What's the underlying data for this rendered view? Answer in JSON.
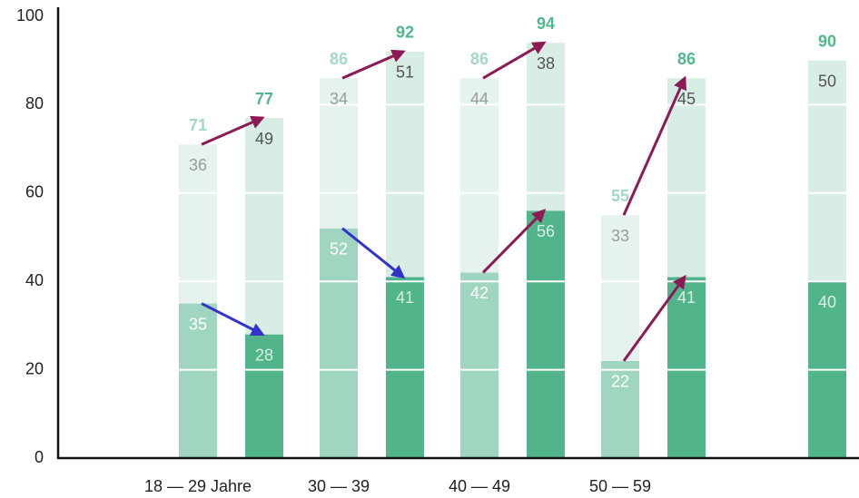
{
  "chart_data": {
    "type": "bar",
    "categories": [
      "18 — 29 Jahre",
      "30 — 39",
      "40 — 49",
      "50 — 59",
      null
    ],
    "series": [
      {
        "color": "#a0d6c0",
        "values": [
          35,
          52,
          42,
          22,
          null
        ]
      },
      {
        "color": "#e6f2ee",
        "values": [
          36,
          34,
          44,
          33,
          null
        ]
      },
      {
        "color": "#52b48a",
        "values": [
          28,
          41,
          56,
          41,
          40
        ]
      },
      {
        "color": "#d8eee5",
        "values": [
          49,
          51,
          38,
          45,
          50
        ]
      }
    ],
    "totals": [
      [
        71,
        86,
        86,
        55,
        null
      ],
      [
        77,
        92,
        94,
        86,
        90
      ]
    ],
    "total_colors": [
      "#a3d9c2",
      "#4fb88a"
    ],
    "increase_color": "#8c1a55",
    "decrease_color": "#3333cc",
    "ylim": [
      0,
      100
    ],
    "yticks": [
      0,
      20,
      40,
      60,
      80,
      100
    ],
    "grid": true
  }
}
